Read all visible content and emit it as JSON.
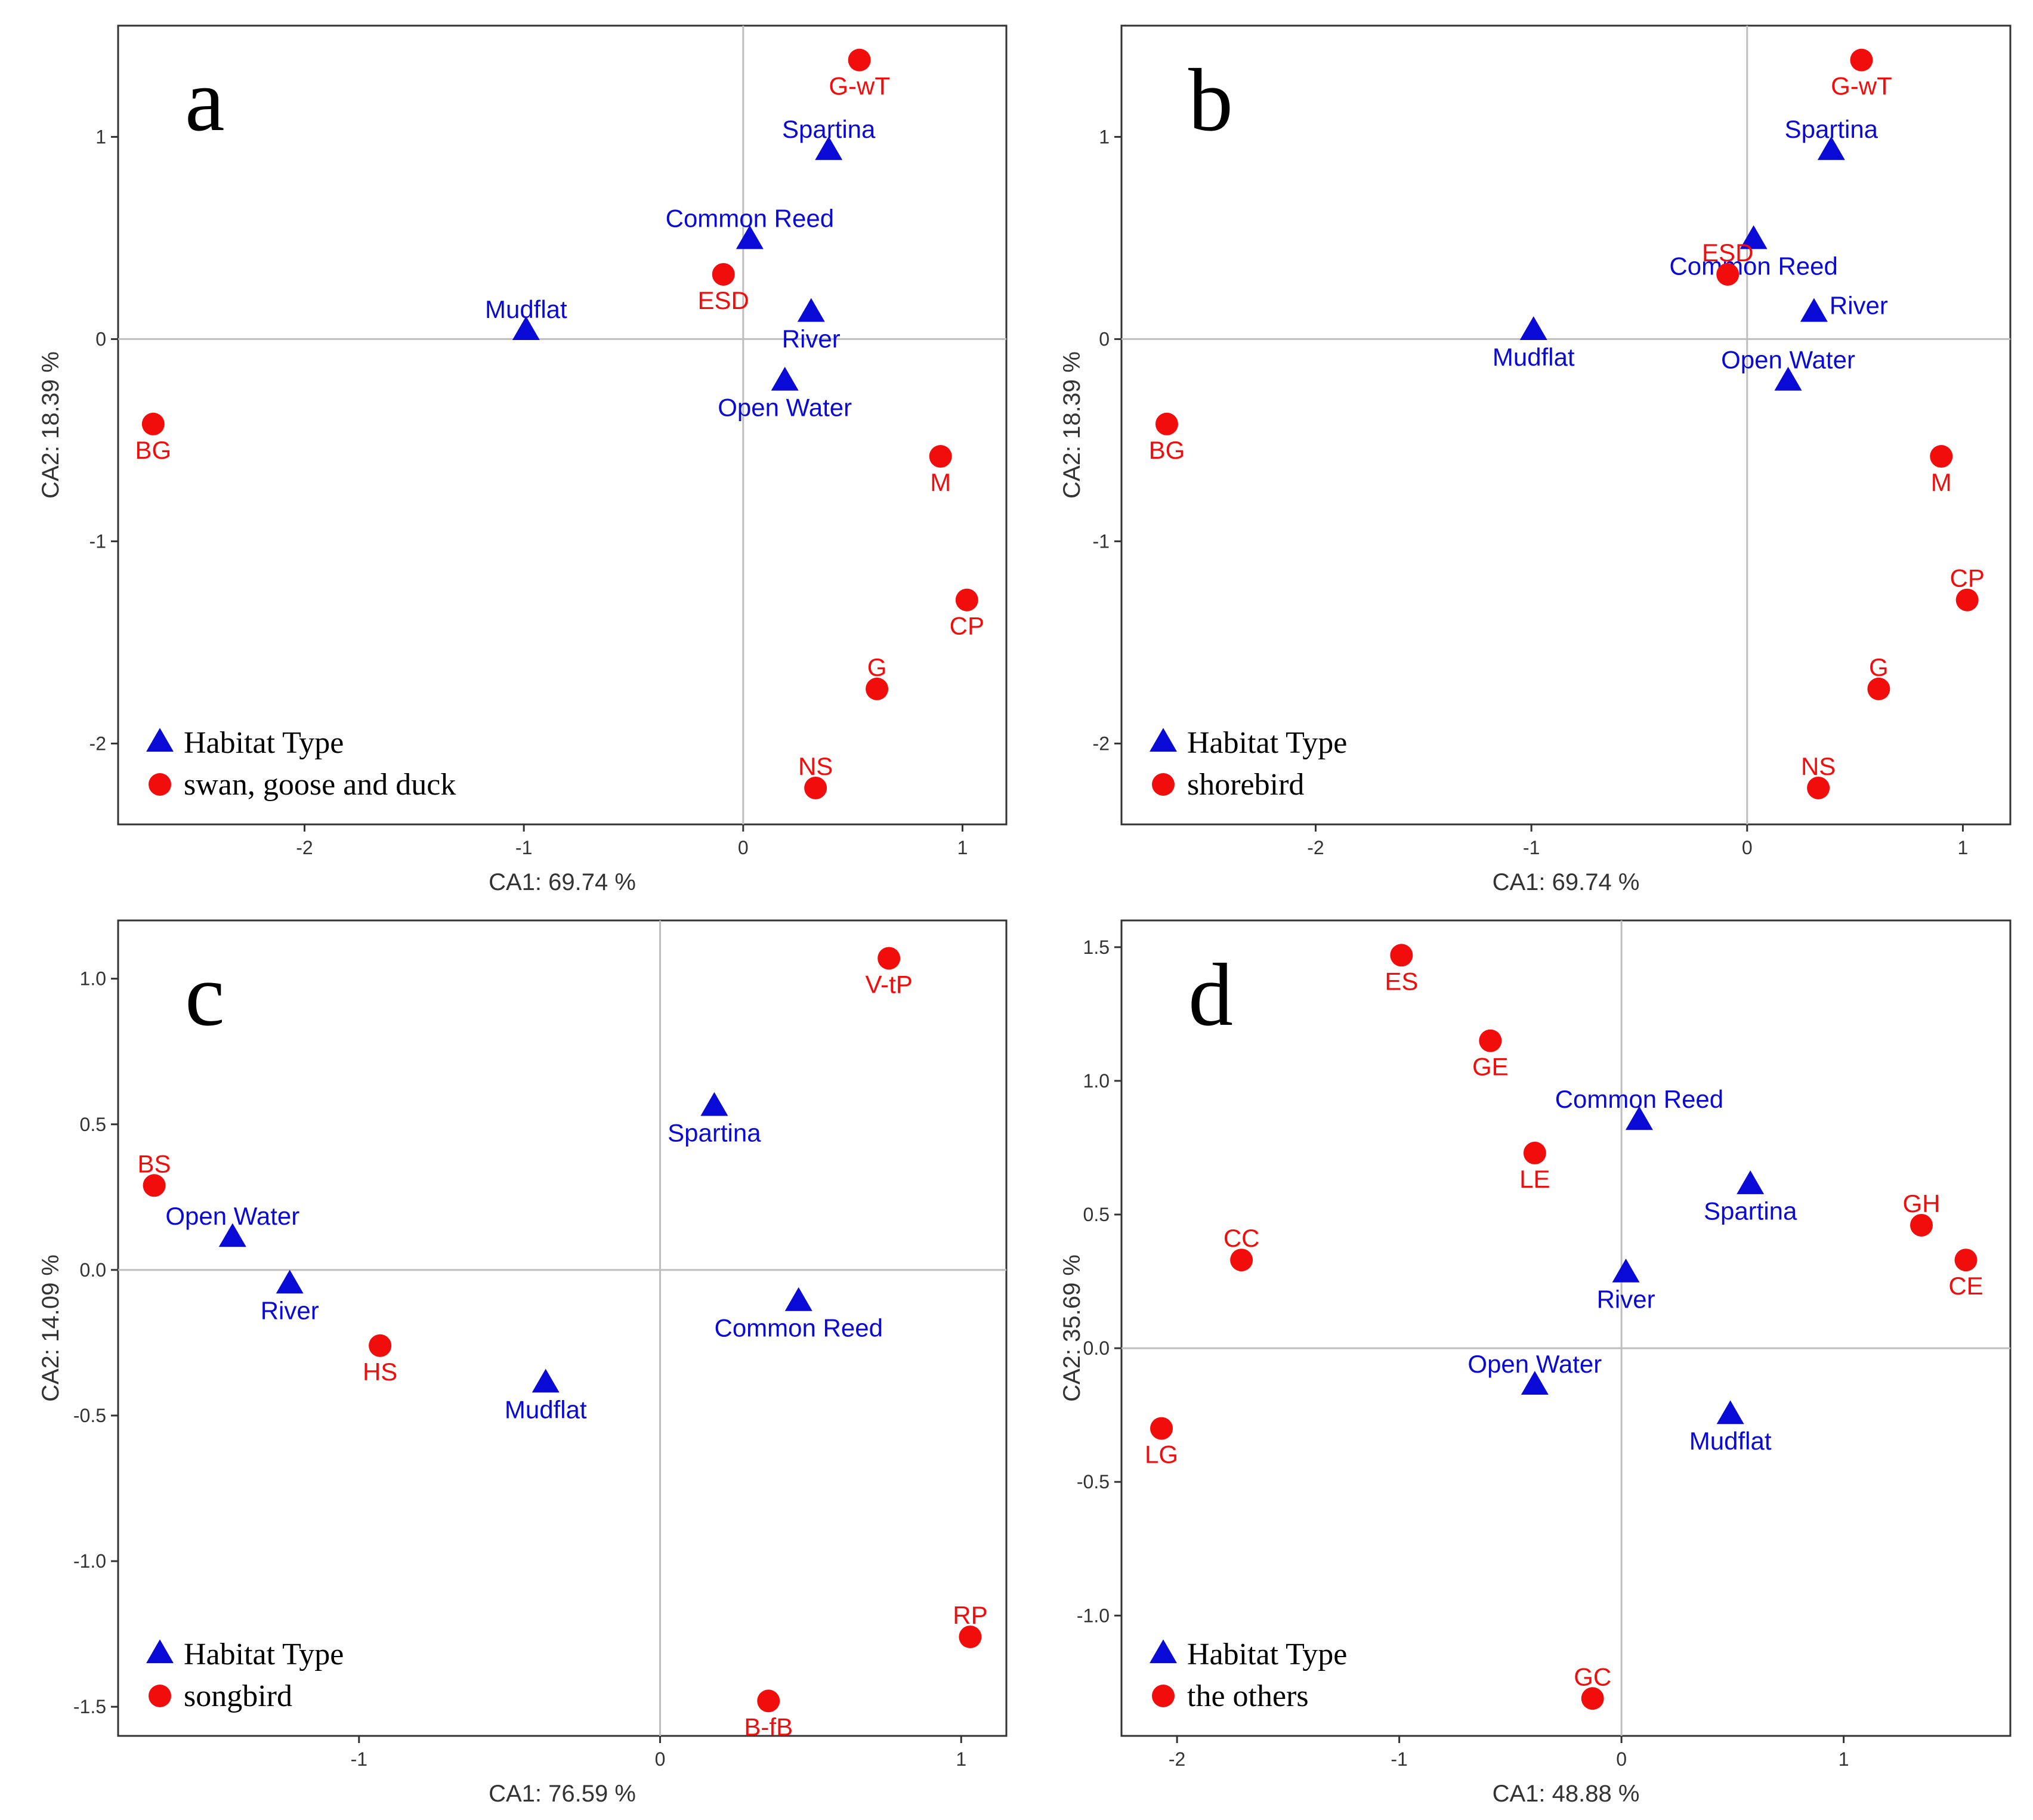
{
  "colors": {
    "habitat": "#0a0ad6",
    "bird": "#f20d0d",
    "zero_line": "#bebebe",
    "frame": "#333333"
  },
  "chart_data": [
    {
      "type": "scatter",
      "panel_label": "a",
      "xlabel": "CA1: 69.74 %",
      "ylabel": "CA2: 18.39 %",
      "xlim": [
        -2.85,
        1.2
      ],
      "ylim": [
        -2.4,
        1.55
      ],
      "xticks": [
        -2,
        -1,
        0,
        1
      ],
      "xtick_labels": [
        "-2",
        "-1",
        "0",
        "1"
      ],
      "yticks": [
        -2,
        -1,
        0,
        1
      ],
      "ytick_labels": [
        "-2",
        "-1",
        "0",
        "1"
      ],
      "legend": {
        "position": "bottom-left",
        "entries": [
          "Habitat Type",
          "swan, goose and duck"
        ]
      },
      "series": [
        {
          "name": "Habitat Type",
          "marker": "triangle",
          "points": [
            {
              "label": "Spartina",
              "x": 0.39,
              "y": 0.93,
              "pos": "above"
            },
            {
              "label": "Common Reed",
              "x": 0.03,
              "y": 0.49,
              "pos": "above"
            },
            {
              "label": "Mudflat",
              "x": -0.99,
              "y": 0.04,
              "pos": "above"
            },
            {
              "label": "River",
              "x": 0.31,
              "y": 0.13,
              "pos": "below"
            },
            {
              "label": "Open Water",
              "x": 0.19,
              "y": -0.21,
              "pos": "below"
            }
          ]
        },
        {
          "name": "swan, goose and duck",
          "marker": "circle",
          "points": [
            {
              "label": "G-wT",
              "x": 0.53,
              "y": 1.38,
              "pos": "below"
            },
            {
              "label": "ESD",
              "x": -0.09,
              "y": 0.32,
              "pos": "below"
            },
            {
              "label": "BG",
              "x": -2.69,
              "y": -0.42,
              "pos": "below"
            },
            {
              "label": "M",
              "x": 0.9,
              "y": -0.58,
              "pos": "below"
            },
            {
              "label": "CP",
              "x": 1.02,
              "y": -1.29,
              "pos": "below"
            },
            {
              "label": "G",
              "x": 0.61,
              "y": -1.73,
              "pos": "above"
            },
            {
              "label": "NS",
              "x": 0.33,
              "y": -2.22,
              "pos": "above"
            }
          ]
        }
      ]
    },
    {
      "type": "scatter",
      "panel_label": "b",
      "xlabel": "CA1: 69.74 %",
      "ylabel": "CA2: 18.39 %",
      "xlim": [
        -2.9,
        1.22
      ],
      "ylim": [
        -2.4,
        1.55
      ],
      "xticks": [
        -2,
        -1,
        0,
        1
      ],
      "xtick_labels": [
        "-2",
        "-1",
        "0",
        "1"
      ],
      "yticks": [
        -2,
        -1,
        0,
        1
      ],
      "ytick_labels": [
        "-2",
        "-1",
        "0",
        "1"
      ],
      "legend": {
        "position": "bottom-left",
        "entries": [
          "Habitat Type",
          "shorebird"
        ]
      },
      "series": [
        {
          "name": "Habitat Type",
          "marker": "triangle",
          "points": [
            {
              "label": "Spartina",
              "x": 0.39,
              "y": 0.93,
              "pos": "above"
            },
            {
              "label": "Common Reed",
              "x": 0.03,
              "y": 0.49,
              "pos": "below"
            },
            {
              "label": "Mudflat",
              "x": -0.99,
              "y": 0.04,
              "pos": "below"
            },
            {
              "label": "River",
              "x": 0.31,
              "y": 0.13,
              "pos": "right"
            },
            {
              "label": "Open Water",
              "x": 0.19,
              "y": -0.21,
              "pos": "above"
            }
          ]
        },
        {
          "name": "shorebird",
          "marker": "circle",
          "points": [
            {
              "label": "G-wT",
              "x": 0.53,
              "y": 1.38,
              "pos": "below"
            },
            {
              "label": "ESD",
              "x": -0.09,
              "y": 0.32,
              "pos": "above"
            },
            {
              "label": "BG",
              "x": -2.69,
              "y": -0.42,
              "pos": "below"
            },
            {
              "label": "M",
              "x": 0.9,
              "y": -0.58,
              "pos": "below"
            },
            {
              "label": "CP",
              "x": 1.02,
              "y": -1.29,
              "pos": "above"
            },
            {
              "label": "G",
              "x": 0.61,
              "y": -1.73,
              "pos": "above"
            },
            {
              "label": "NS",
              "x": 0.33,
              "y": -2.22,
              "pos": "above"
            }
          ]
        }
      ]
    },
    {
      "type": "scatter",
      "panel_label": "c",
      "xlabel": "CA1: 76.59 %",
      "ylabel": "CA2: 14.09 %",
      "xlim": [
        -1.8,
        1.15
      ],
      "ylim": [
        -1.6,
        1.2
      ],
      "xticks": [
        -1,
        0,
        1
      ],
      "xtick_labels": [
        "-1",
        "0",
        "1"
      ],
      "yticks": [
        -1.5,
        -1.0,
        -0.5,
        0.0,
        0.5,
        1.0
      ],
      "ytick_labels": [
        "-1.5",
        "-1.0",
        "-0.5",
        "0.0",
        "0.5",
        "1.0"
      ],
      "legend": {
        "position": "bottom-left",
        "entries": [
          "Habitat Type",
          "songbird"
        ]
      },
      "series": [
        {
          "name": "Habitat Type",
          "marker": "triangle",
          "points": [
            {
              "label": "Spartina",
              "x": 0.18,
              "y": 0.56,
              "pos": "below"
            },
            {
              "label": "Open Water",
              "x": -1.42,
              "y": 0.11,
              "pos": "above"
            },
            {
              "label": "River",
              "x": -1.23,
              "y": -0.05,
              "pos": "below"
            },
            {
              "label": "Common Reed",
              "x": 0.46,
              "y": -0.11,
              "pos": "below"
            },
            {
              "label": "Mudflat",
              "x": -0.38,
              "y": -0.39,
              "pos": "below"
            }
          ]
        },
        {
          "name": "songbird",
          "marker": "circle",
          "points": [
            {
              "label": "V-tP",
              "x": 0.76,
              "y": 1.07,
              "pos": "below"
            },
            {
              "label": "BS",
              "x": -1.68,
              "y": 0.29,
              "pos": "above"
            },
            {
              "label": "HS",
              "x": -0.93,
              "y": -0.26,
              "pos": "below"
            },
            {
              "label": "RP",
              "x": 1.03,
              "y": -1.26,
              "pos": "above"
            },
            {
              "label": "B-fB",
              "x": 0.36,
              "y": -1.48,
              "pos": "below"
            }
          ]
        }
      ]
    },
    {
      "type": "scatter",
      "panel_label": "d",
      "xlabel": "CA1: 48.88 %",
      "ylabel": "CA2: 35.69 %",
      "xlim": [
        -2.25,
        1.75
      ],
      "ylim": [
        -1.45,
        1.6
      ],
      "xticks": [
        -2,
        -1,
        0,
        1
      ],
      "xtick_labels": [
        "-2",
        "-1",
        "0",
        "1"
      ],
      "yticks": [
        -1.0,
        -0.5,
        0.0,
        0.5,
        1.0,
        1.5
      ],
      "ytick_labels": [
        "-1.0",
        "-0.5",
        "0.0",
        "0.5",
        "1.0",
        "1.5"
      ],
      "legend": {
        "position": "bottom-left",
        "entries": [
          "Habitat Type",
          "the others"
        ]
      },
      "series": [
        {
          "name": "Habitat Type",
          "marker": "triangle",
          "points": [
            {
              "label": "Common Reed",
              "x": 0.08,
              "y": 0.85,
              "pos": "above"
            },
            {
              "label": "Spartina",
              "x": 0.58,
              "y": 0.61,
              "pos": "below"
            },
            {
              "label": "River",
              "x": 0.02,
              "y": 0.28,
              "pos": "below"
            },
            {
              "label": "Open Water",
              "x": -0.39,
              "y": -0.14,
              "pos": "above"
            },
            {
              "label": "Mudflat",
              "x": 0.49,
              "y": -0.25,
              "pos": "below"
            }
          ]
        },
        {
          "name": "the others",
          "marker": "circle",
          "points": [
            {
              "label": "ES",
              "x": -0.99,
              "y": 1.47,
              "pos": "below"
            },
            {
              "label": "GE",
              "x": -0.59,
              "y": 1.15,
              "pos": "below"
            },
            {
              "label": "LE",
              "x": -0.39,
              "y": 0.73,
              "pos": "below"
            },
            {
              "label": "CC",
              "x": -1.71,
              "y": 0.33,
              "pos": "above"
            },
            {
              "label": "GH",
              "x": 1.35,
              "y": 0.46,
              "pos": "above"
            },
            {
              "label": "CE",
              "x": 1.55,
              "y": 0.33,
              "pos": "below"
            },
            {
              "label": "LG",
              "x": -2.07,
              "y": -0.3,
              "pos": "below"
            },
            {
              "label": "GC",
              "x": -0.13,
              "y": -1.31,
              "pos": "above"
            }
          ]
        }
      ]
    }
  ]
}
